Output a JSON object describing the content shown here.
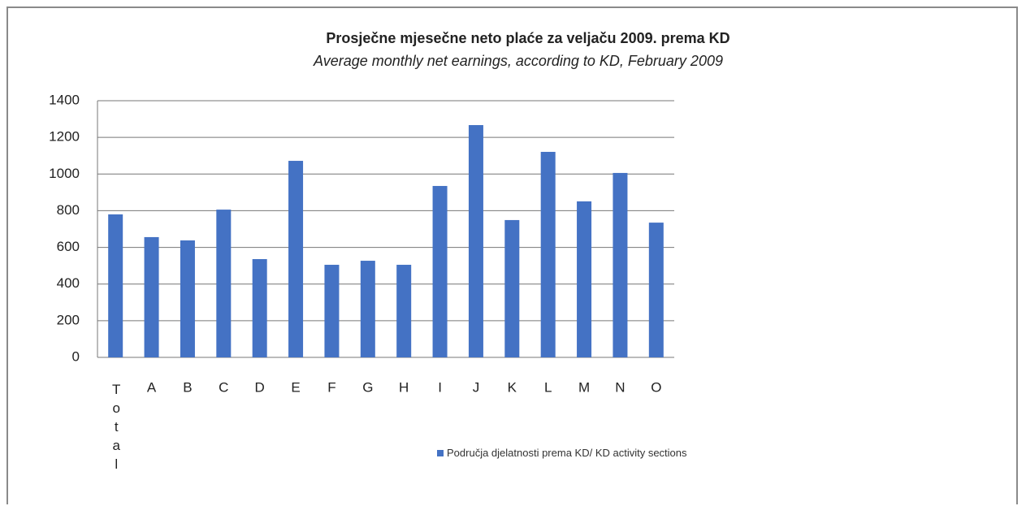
{
  "chart_data": {
    "type": "bar",
    "title": "Prosječne mjesečne neto plaće za veljaču 2009. prema KD",
    "subtitle": "Average monthly net earnings, according to KD, February 2009",
    "categories": [
      "Total",
      "A",
      "B",
      "C",
      "D",
      "E",
      "F",
      "G",
      "H",
      "I",
      "J",
      "K",
      "L",
      "M",
      "N",
      "O"
    ],
    "series": [
      {
        "name": "Područja djelatnosti prema KD/ KD activity sections",
        "color": "#4472c4",
        "values": [
          780,
          656,
          638,
          806,
          536,
          1072,
          505,
          527,
          505,
          935,
          1267,
          749,
          1121,
          851,
          1006,
          735
        ]
      }
    ],
    "ylim": [
      0,
      1400
    ],
    "yticks": [
      0,
      200,
      400,
      600,
      800,
      1000,
      1200,
      1400
    ],
    "grid": true
  }
}
